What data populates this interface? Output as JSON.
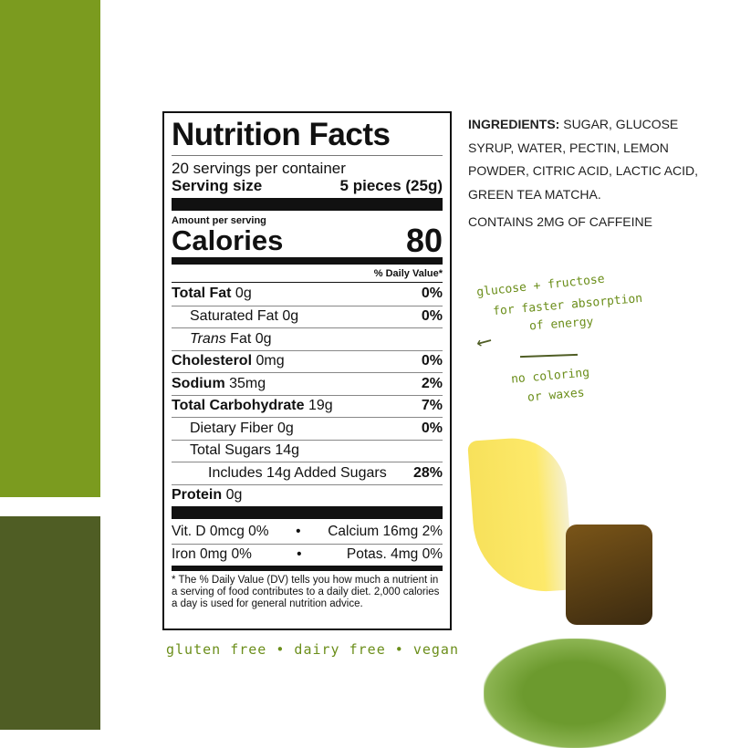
{
  "colors": {
    "bar_top": "#7b9b1f",
    "bar_bottom": "#4f5d24",
    "handwriting": "#6b8e1a"
  },
  "label": {
    "title": "Nutrition Facts",
    "servings": "20 servings per container",
    "serving_size_label": "Serving size",
    "serving_size_value": "5 pieces (25g)",
    "amount_per_serving": "Amount per serving",
    "calories_label": "Calories",
    "calories_value": "80",
    "dv_header": "% Daily Value*",
    "rows": [
      {
        "name": "Total Fat",
        "amount": " 0g",
        "dv": "0%"
      },
      {
        "name": "Saturated Fat 0g",
        "amount": "",
        "dv": "0%"
      },
      {
        "name": "Trans",
        "amount": " Fat 0g",
        "dv": ""
      },
      {
        "name": "Cholesterol",
        "amount": " 0mg",
        "dv": "0%"
      },
      {
        "name": "Sodium",
        "amount": " 35mg",
        "dv": "2%"
      },
      {
        "name": "Total Carbohydrate",
        "amount": " 19g",
        "dv": "7%"
      },
      {
        "name": "Dietary Fiber 0g",
        "amount": "",
        "dv": "0%"
      },
      {
        "name": "Total Sugars 14g",
        "amount": "",
        "dv": ""
      },
      {
        "name": "Includes 14g Added Sugars",
        "amount": "",
        "dv": "28%"
      },
      {
        "name": "Protein",
        "amount": "  0g",
        "dv": ""
      }
    ],
    "vitd": "Vit. D 0mcg 0%",
    "calcium": "Calcium 16mg 2%",
    "iron": "Iron 0mg 0%",
    "potassium": "Potas. 4mg 0%",
    "bullet": "•",
    "footnote": "* The % Daily Value (DV) tells you how much a nutrient in a serving of food contributes to a daily diet. 2,000 calories a day is used for general nutrition advice."
  },
  "ingredients": {
    "label": "INGREDIENTS:",
    "text": " SUGAR, GLUCOSE SYRUP, WATER, PECTIN, LEMON POWDER, CITRIC ACID, LACTIC ACID, GREEN TEA MATCHA.",
    "caffeine": "CONTAINS 2MG OF CAFFEINE"
  },
  "notes": {
    "line1": "glucose + fructose",
    "line2": "for faster absorption",
    "line3": "of energy",
    "arrow": "⟵",
    "note2a": "no coloring",
    "note2b": "or waxes",
    "bottom": "gluten free • dairy free • vegan"
  }
}
